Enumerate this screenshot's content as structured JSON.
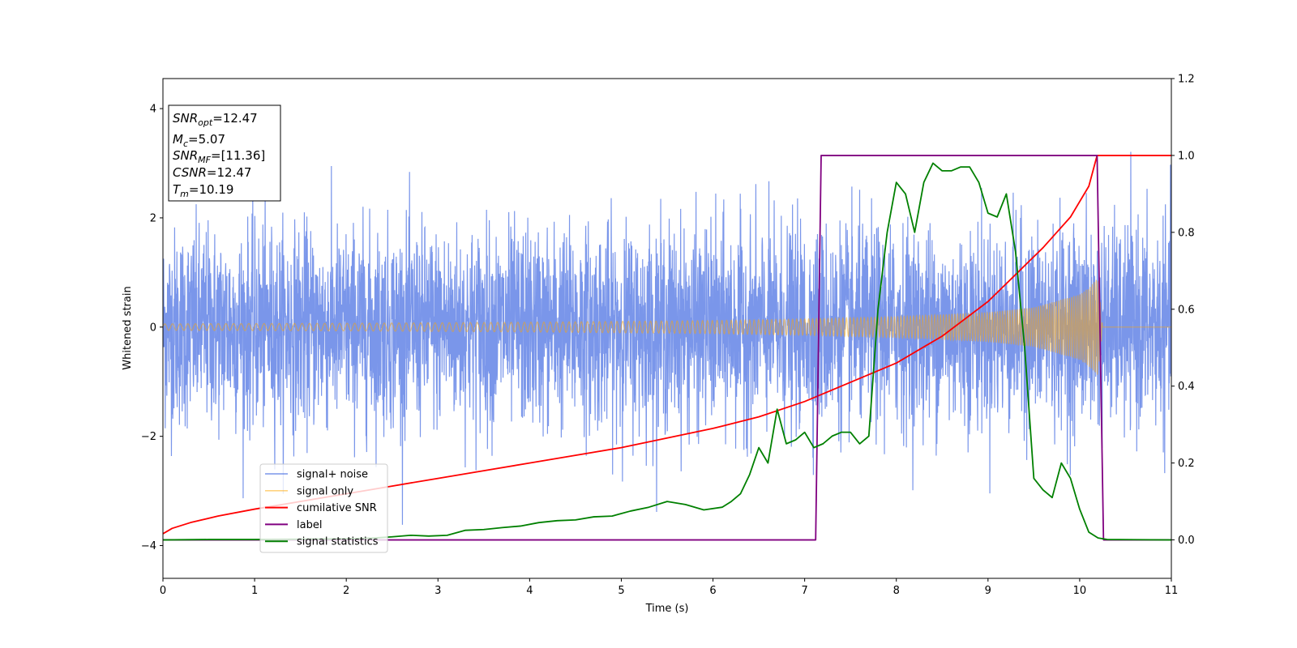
{
  "chart_data": {
    "type": "line",
    "title": "",
    "xlabel": "Time (s)",
    "ylabel": "Whitened strain",
    "y2label": "",
    "xlim": [
      0,
      11
    ],
    "ylim": [
      -4.6,
      4.55
    ],
    "y2lim": [
      -0.1,
      1.2
    ],
    "xticks": [
      "0",
      "1",
      "2",
      "3",
      "4",
      "5",
      "6",
      "7",
      "8",
      "9",
      "10",
      "11"
    ],
    "yticks": [
      "−4",
      "−2",
      "0",
      "2",
      "4"
    ],
    "y2ticks": [
      "0.0",
      "0.2",
      "0.4",
      "0.6",
      "0.8",
      "1.0",
      "1.2"
    ],
    "grid": false,
    "legend_position": "lower-left",
    "info_box": {
      "snr_opt": "=12.47",
      "mc": "=5.07",
      "snr_mf": "=[11.36]",
      "csnr": "=12.47",
      "tm": "=10.19"
    },
    "series": [
      {
        "name": "signal+ noise",
        "color": "#4169e1",
        "axis": "left",
        "kind": "noise",
        "approx_amplitude_std": 0.9,
        "approx_peak_range": [
          -4.1,
          4.1
        ],
        "x_range": [
          0,
          11
        ]
      },
      {
        "name": "signal only",
        "color": "#ffa500",
        "axis": "left",
        "kind": "chirp",
        "x_range": [
          0,
          10.25
        ],
        "envelope": {
          "x": [
            0,
            2,
            4,
            6,
            7,
            8,
            9,
            9.5,
            10,
            10.1,
            10.2,
            10.25
          ],
          "y": [
            0.06,
            0.07,
            0.09,
            0.12,
            0.15,
            0.19,
            0.27,
            0.36,
            0.6,
            0.72,
            0.9,
            0
          ]
        }
      },
      {
        "name": "cumilative SNR",
        "color": "#ff0000",
        "axis": "right",
        "x": [
          0,
          0.1,
          0.3,
          0.6,
          1,
          1.5,
          2,
          2.5,
          3,
          3.5,
          4,
          4.5,
          5,
          5.5,
          6,
          6.5,
          7,
          7.5,
          8,
          8.5,
          9,
          9.3,
          9.6,
          9.9,
          10.1,
          10.19,
          10.25,
          11
        ],
        "y": [
          0.016,
          0.03,
          0.045,
          0.062,
          0.08,
          0.1,
          0.12,
          0.14,
          0.16,
          0.18,
          0.2,
          0.22,
          0.24,
          0.265,
          0.29,
          0.32,
          0.36,
          0.41,
          0.46,
          0.53,
          0.62,
          0.69,
          0.76,
          0.84,
          0.92,
          1.0,
          1.0,
          1.0
        ]
      },
      {
        "name": "label",
        "color": "#800080",
        "axis": "right",
        "x": [
          0,
          7.12,
          7.18,
          10.19,
          10.26,
          11
        ],
        "y": [
          0,
          0,
          1,
          1,
          0,
          0
        ]
      },
      {
        "name": "signal statistics",
        "color": "#008000",
        "axis": "right",
        "x": [
          0,
          0.5,
          1,
          1.5,
          2,
          2.3,
          2.5,
          2.7,
          2.9,
          3.1,
          3.3,
          3.5,
          3.7,
          3.9,
          4.1,
          4.3,
          4.5,
          4.7,
          4.9,
          5.1,
          5.3,
          5.5,
          5.7,
          5.9,
          6.1,
          6.2,
          6.3,
          6.4,
          6.5,
          6.6,
          6.7,
          6.8,
          6.9,
          7.0,
          7.1,
          7.2,
          7.3,
          7.4,
          7.5,
          7.6,
          7.7,
          7.8,
          7.9,
          8.0,
          8.1,
          8.2,
          8.3,
          8.4,
          8.5,
          8.6,
          8.7,
          8.8,
          8.9,
          9.0,
          9.1,
          9.2,
          9.3,
          9.4,
          9.5,
          9.6,
          9.7,
          9.8,
          9.9,
          10.0,
          10.1,
          10.2,
          10.3,
          11
        ],
        "y": [
          0,
          0.001,
          0.001,
          0.002,
          0.003,
          0.005,
          0.008,
          0.012,
          0.01,
          0.012,
          0.025,
          0.027,
          0.032,
          0.036,
          0.045,
          0.05,
          0.052,
          0.06,
          0.062,
          0.075,
          0.085,
          0.1,
          0.092,
          0.078,
          0.085,
          0.1,
          0.12,
          0.17,
          0.24,
          0.2,
          0.34,
          0.25,
          0.26,
          0.28,
          0.24,
          0.25,
          0.27,
          0.28,
          0.28,
          0.25,
          0.27,
          0.6,
          0.8,
          0.93,
          0.9,
          0.8,
          0.93,
          0.98,
          0.96,
          0.96,
          0.97,
          0.97,
          0.93,
          0.85,
          0.84,
          0.9,
          0.75,
          0.5,
          0.16,
          0.13,
          0.11,
          0.2,
          0.16,
          0.08,
          0.02,
          0.005,
          0.001,
          0
        ]
      }
    ]
  }
}
